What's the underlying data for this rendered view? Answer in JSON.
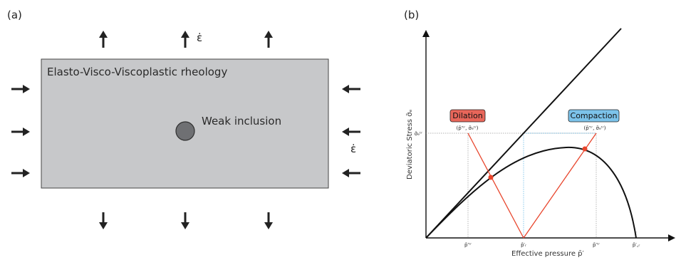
{
  "panel_a": {
    "label": "(a)",
    "box_title": "Elasto-Visco-Viscoplastic rheology",
    "inclusion_label": "Weak inclusion",
    "strain_rate_top": "ε̇",
    "strain_rate_side": "ε̇"
  },
  "panel_b": {
    "label": "(b)",
    "y_axis_title": "Deviatoric Stress σ̄ₑ",
    "x_axis_title": "Effective pressure p̄′",
    "y_tick": "σ̄ₑᵗʳ",
    "x_ticks": {
      "p_trial_left": "p̄′ᵗʳ",
      "p_r": "p̄′ᵣ",
      "p_trial_right": "p̄′ᵗʳ",
      "p_cr": "p̄′꜀ᵣ"
    },
    "dilation": {
      "tag": "Dilation",
      "coords": "(p̄′ᵗʳ, σ̄ₑᵗʳ)",
      "color": "#e8665a"
    },
    "compaction": {
      "tag": "Compaction",
      "coords": "(p̄′ᵗʳ, σ̄ₑᵗʳ)",
      "color": "#7cc3ea"
    },
    "line_color": "#e8452c"
  }
}
